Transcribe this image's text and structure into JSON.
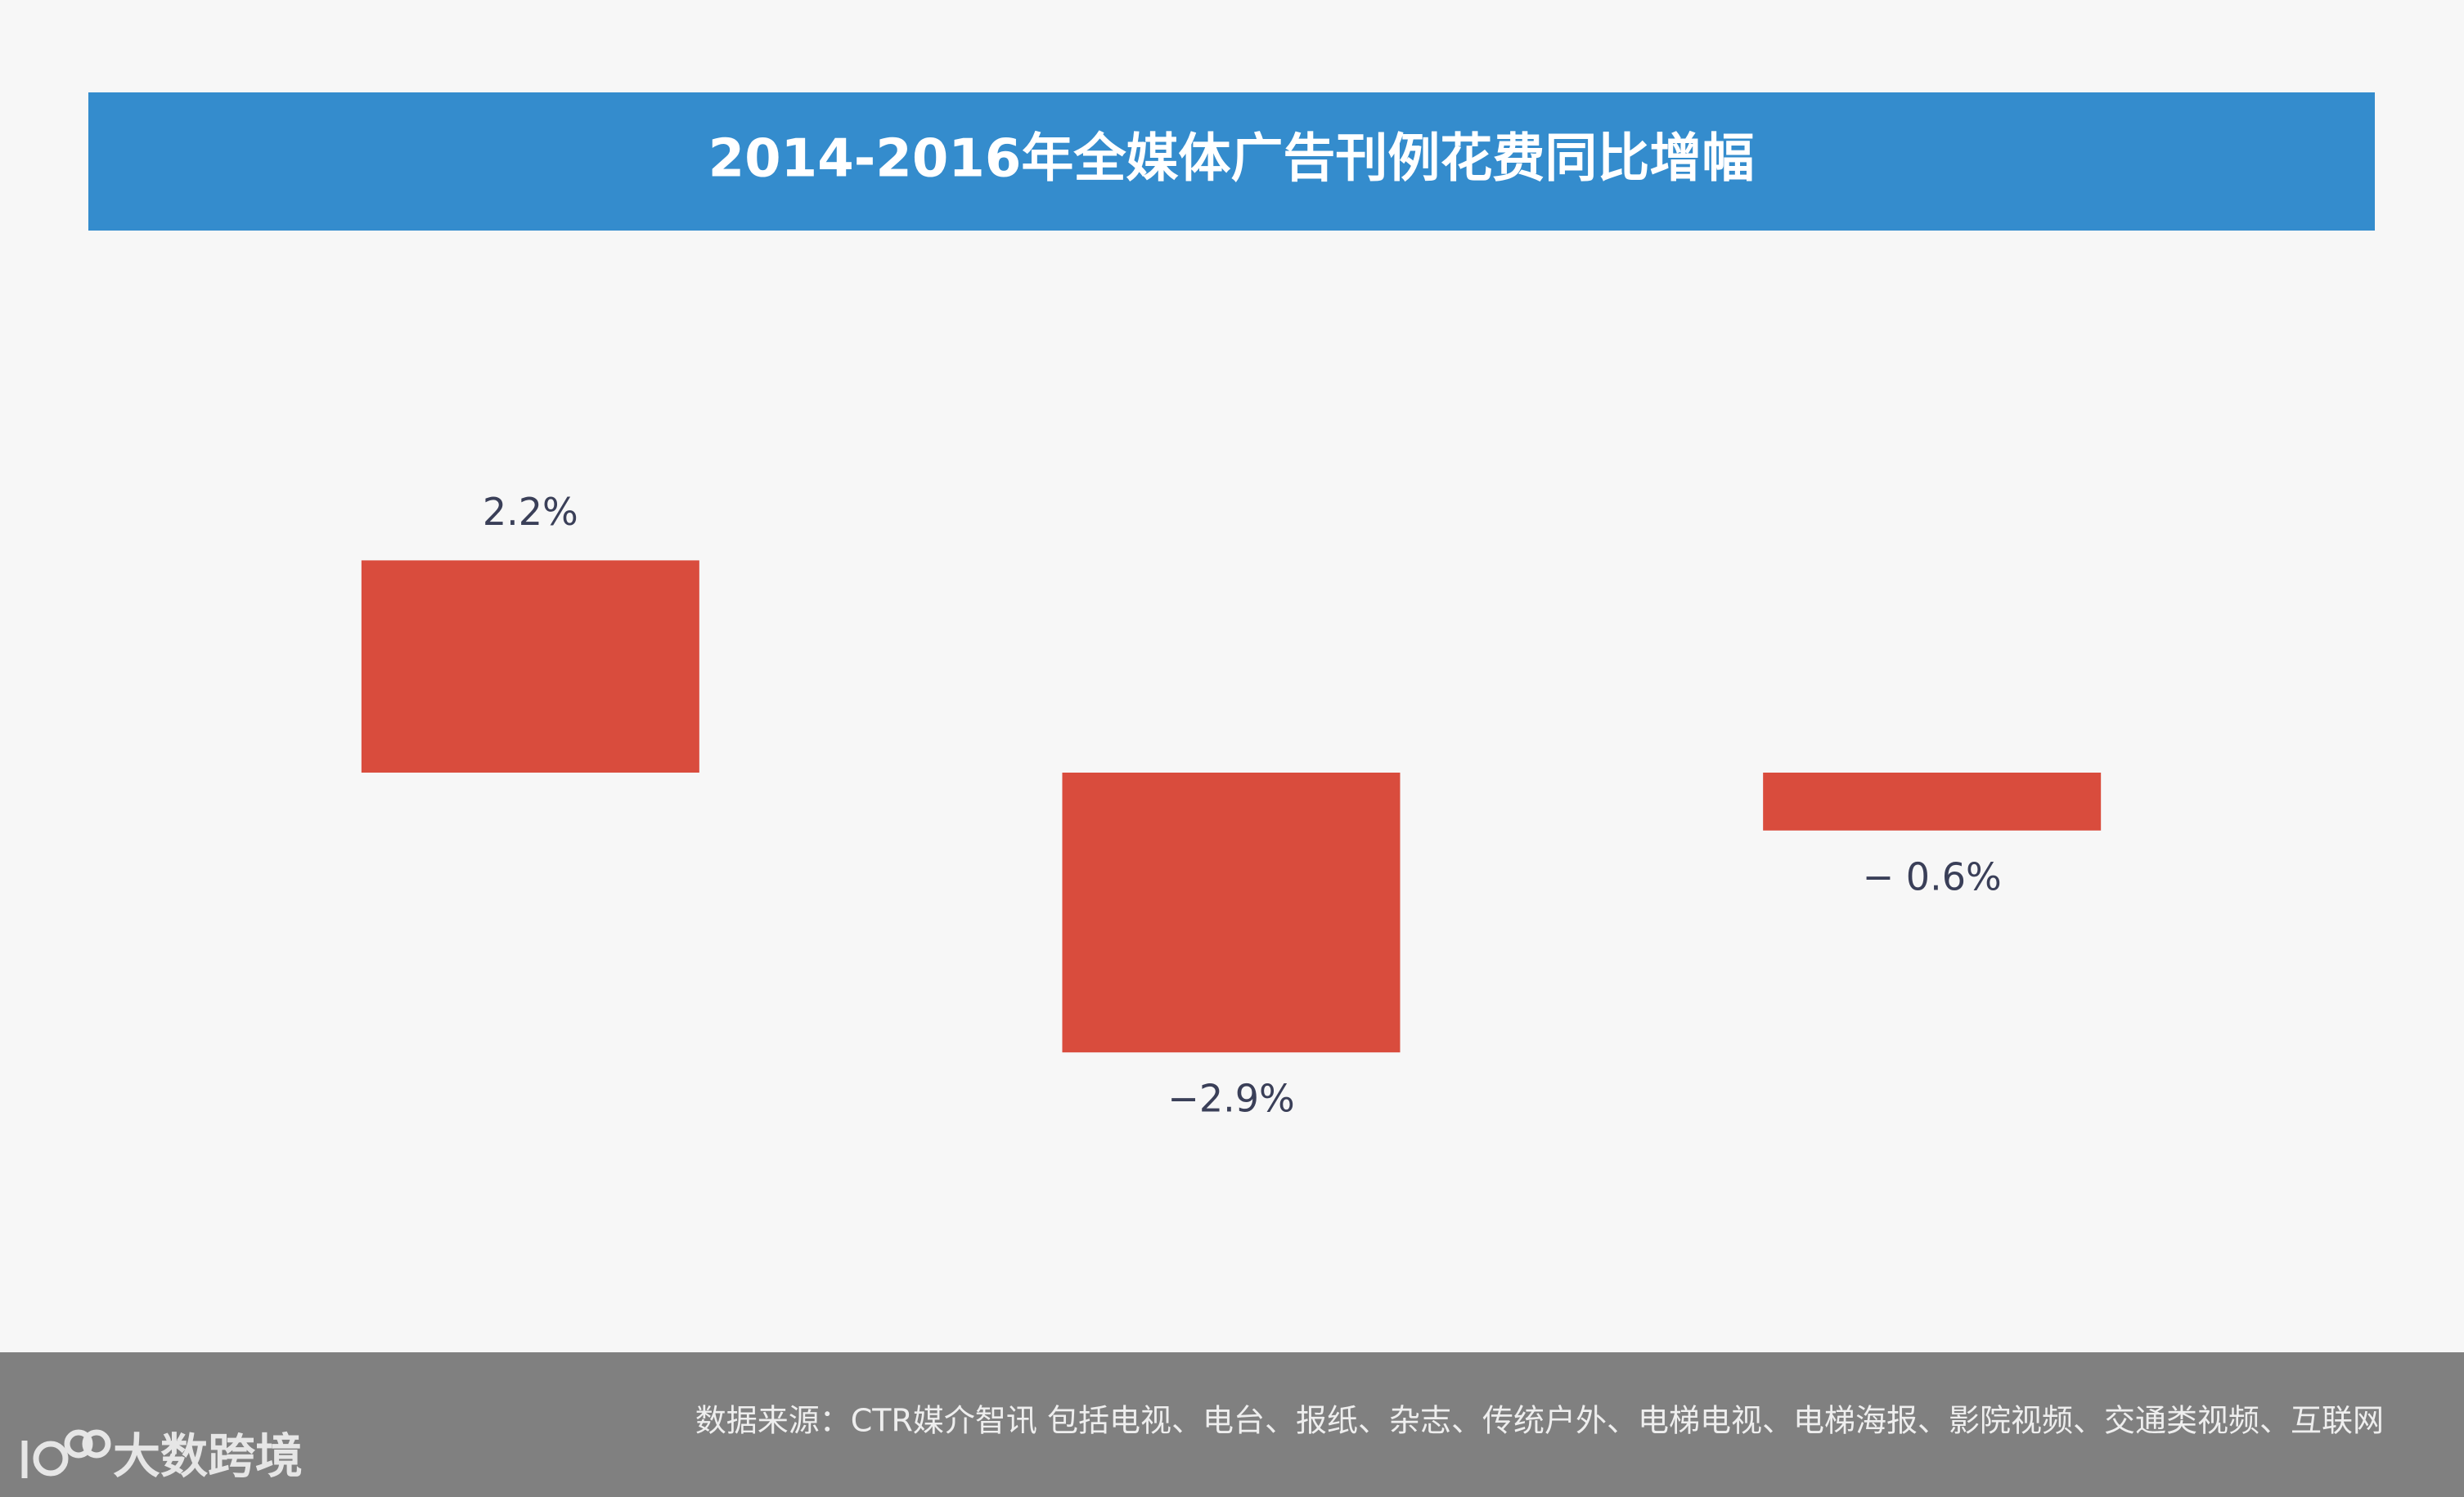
{
  "chart_data": {
    "type": "bar",
    "title": "2014-2016年全媒体广告刊例花费同比增幅",
    "categories": [
      null,
      null,
      null
    ],
    "values": [
      2.2,
      -2.9,
      -0.6
    ],
    "value_labels": [
      "2.2%",
      "−2.9%",
      "− 0.6%"
    ],
    "color": "#d94c3d"
  },
  "footer": {
    "source": "数据来源：CTR媒介智讯   包括电视、电台、报纸、杂志、传统户外、电梯电视、电梯海报、影院视频、交通类视频、互联网",
    "brand": "大数跨境"
  }
}
